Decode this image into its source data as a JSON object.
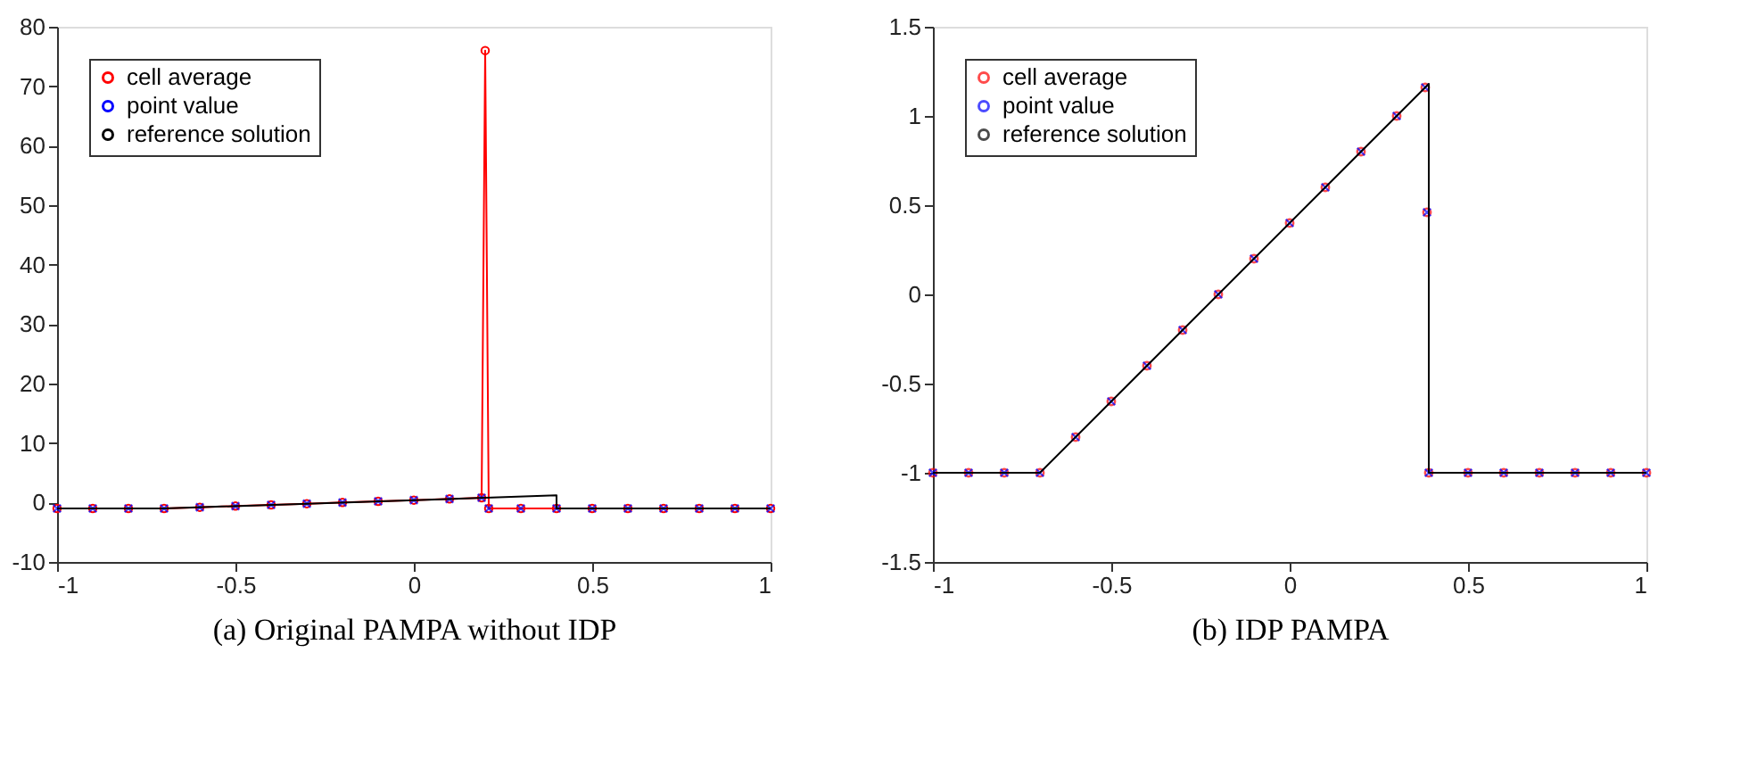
{
  "chart_data": [
    {
      "type": "line",
      "xlabel": "(a) Original PAMPA without IDP",
      "xlim": [
        -1,
        1
      ],
      "xticks": [
        -1,
        -0.5,
        0,
        0.5,
        1
      ],
      "ylim": [
        -10,
        80
      ],
      "yticks": [
        -10,
        0,
        10,
        20,
        30,
        40,
        50,
        60,
        70,
        80
      ],
      "grid": false,
      "legend": "top left",
      "series": [
        {
          "name": "cell average",
          "type": "line",
          "marker": "circle",
          "color": "#ff0000",
          "x": [
            -1,
            -0.9,
            -0.8,
            -0.7,
            -0.6,
            -0.5,
            -0.4,
            -0.3,
            -0.2,
            -0.1,
            0,
            0.1,
            0.19,
            0.2,
            0.21,
            0.3,
            0.4,
            0.5,
            0.6,
            0.7,
            0.8,
            0.9,
            1
          ],
          "values": [
            -1,
            -1,
            -1,
            -1,
            -0.8,
            -0.6,
            -0.4,
            -0.2,
            0,
            0.2,
            0.4,
            0.6,
            0.8,
            76,
            -1,
            -1,
            -1,
            -1,
            -1,
            -1,
            -1,
            -1,
            -1
          ]
        },
        {
          "name": "point value",
          "type": "scatter",
          "marker": "cross",
          "color": "#0000ff",
          "x": [
            -1,
            -0.9,
            -0.8,
            -0.7,
            -0.6,
            -0.5,
            -0.4,
            -0.3,
            -0.2,
            -0.1,
            0,
            0.1,
            0.19,
            0.21,
            0.3,
            0.4,
            0.5,
            0.6,
            0.7,
            0.8,
            0.9,
            1
          ],
          "values": [
            -1,
            -1,
            -1,
            -1,
            -0.8,
            -0.6,
            -0.4,
            -0.2,
            0,
            0.2,
            0.4,
            0.6,
            0.8,
            -1,
            -1,
            -1,
            -1,
            -1,
            -1,
            -1,
            -1,
            -1
          ]
        },
        {
          "name": "reference solution",
          "type": "line",
          "marker": "none",
          "color": "#000000",
          "x": [
            -1,
            -0.7,
            0.4,
            0.4,
            1
          ],
          "values": [
            -1,
            -1,
            1.2,
            -1,
            -1
          ]
        }
      ]
    },
    {
      "type": "line",
      "xlabel": "(b) IDP PAMPA",
      "xlim": [
        -1,
        1
      ],
      "xticks": [
        -1,
        -0.5,
        0,
        0.5,
        1
      ],
      "ylim": [
        -1.5,
        1.5
      ],
      "yticks": [
        -1.5,
        -1,
        -0.5,
        0,
        0.5,
        1,
        1.5
      ],
      "grid": false,
      "legend": "top left",
      "series": [
        {
          "name": "cell average",
          "type": "scatter",
          "marker": "circle",
          "color": "#ff0000",
          "x": [
            -1,
            -0.9,
            -0.8,
            -0.7,
            -0.6,
            -0.5,
            -0.4,
            -0.3,
            -0.2,
            -0.1,
            0,
            0.1,
            0.2,
            0.3,
            0.38,
            0.385,
            0.39,
            0.5,
            0.6,
            0.7,
            0.8,
            0.9,
            1
          ],
          "values": [
            -1,
            -1,
            -1,
            -1,
            -0.8,
            -0.6,
            -0.4,
            -0.2,
            0,
            0.2,
            0.4,
            0.6,
            0.8,
            1,
            1.16,
            0.46,
            -1,
            -1,
            -1,
            -1,
            -1,
            -1,
            -1
          ]
        },
        {
          "name": "point value",
          "type": "scatter",
          "marker": "cross",
          "color": "#0000ff",
          "x": [
            -1,
            -0.9,
            -0.8,
            -0.7,
            -0.6,
            -0.5,
            -0.4,
            -0.3,
            -0.2,
            -0.1,
            0,
            0.1,
            0.2,
            0.3,
            0.38,
            0.385,
            0.39,
            0.5,
            0.6,
            0.7,
            0.8,
            0.9,
            1
          ],
          "values": [
            -1,
            -1,
            -1,
            -1,
            -0.8,
            -0.6,
            -0.4,
            -0.2,
            0,
            0.2,
            0.4,
            0.6,
            0.8,
            1,
            1.16,
            0.46,
            -1,
            -1,
            -1,
            -1,
            -1,
            -1,
            -1
          ]
        },
        {
          "name": "reference solution",
          "type": "line",
          "marker": "none",
          "color": "#000000",
          "x": [
            -1,
            -0.7,
            0.39,
            0.39,
            1
          ],
          "values": [
            -1,
            -1,
            1.18,
            -1,
            -1
          ]
        }
      ]
    }
  ]
}
